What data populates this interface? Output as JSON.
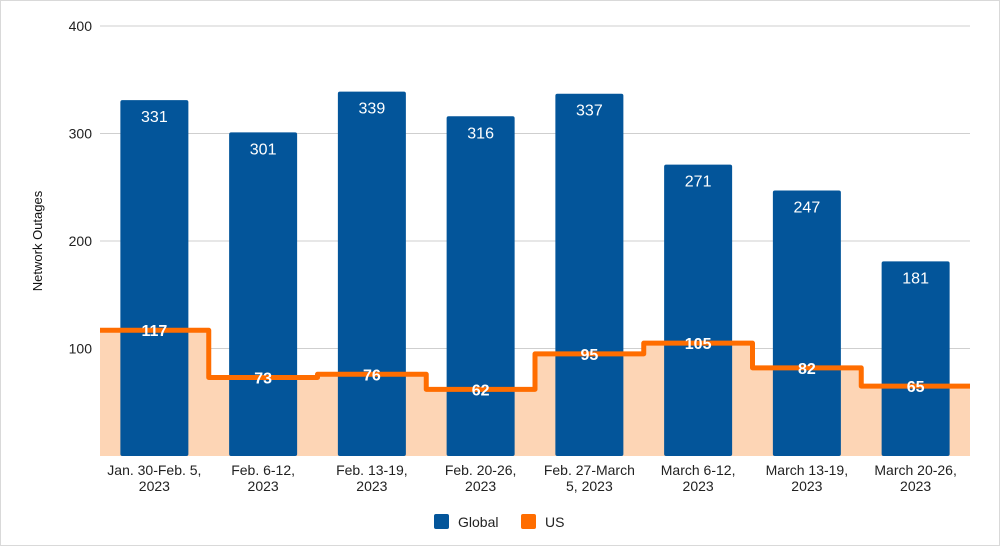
{
  "chart_data": {
    "type": "bar",
    "title": "",
    "xlabel": "",
    "ylabel": "Network Outages",
    "ylim": [
      0,
      400
    ],
    "yticks": [
      100,
      200,
      300,
      400
    ],
    "grid": true,
    "legend_position": "bottom",
    "categories": [
      [
        "Jan. 30-Feb. 5,",
        "2023"
      ],
      [
        "Feb. 6-12,",
        "2023"
      ],
      [
        "Feb. 13-19,",
        "2023"
      ],
      [
        "Feb. 20-26,",
        "2023"
      ],
      [
        "Feb. 27-March",
        "5, 2023"
      ],
      [
        "March 6-12,",
        "2023"
      ],
      [
        "March 13-19,",
        "2023"
      ],
      [
        "March 20-26,",
        "2023"
      ]
    ],
    "series": [
      {
        "name": "Global",
        "type": "bar",
        "color": "#03559a",
        "values": [
          331,
          301,
          339,
          316,
          337,
          271,
          247,
          181
        ]
      },
      {
        "name": "US",
        "type": "stepped-area",
        "color": "#ff6d00",
        "fill_color": "#fdd5b5",
        "values": [
          117,
          73,
          76,
          62,
          95,
          105,
          82,
          65
        ]
      }
    ]
  }
}
